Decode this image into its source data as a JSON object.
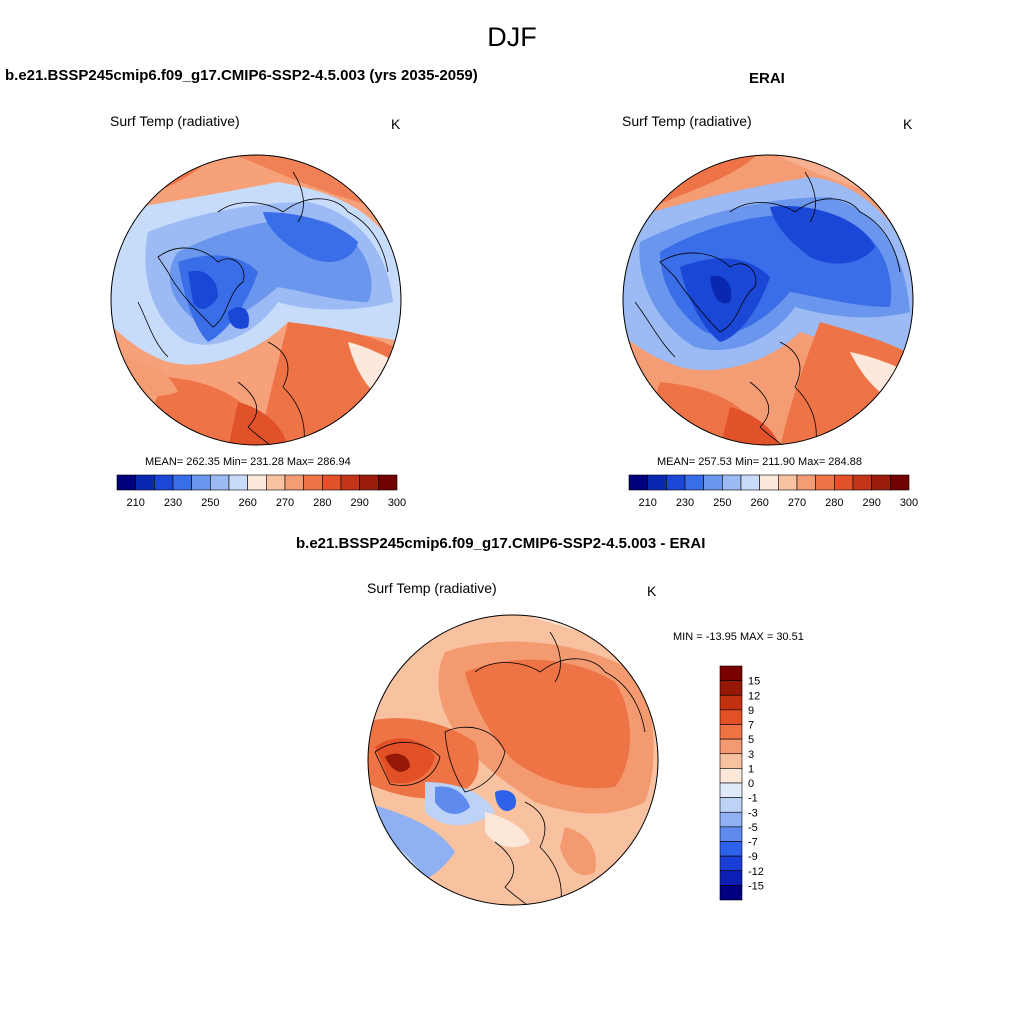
{
  "page_title": "DJF",
  "colors": {
    "seq_scale": [
      "#00007f",
      "#0a27b0",
      "#1a47d6",
      "#3a6ee8",
      "#6a96ee",
      "#9cbaf3",
      "#c7dcfa",
      "#fde8dc",
      "#f9c2a3",
      "#f49c74",
      "#ee7447",
      "#e2522a",
      "#c43418",
      "#9a1d0b",
      "#730000"
    ],
    "div_scale": [
      "#000080",
      "#0b1fb5",
      "#1b3ed6",
      "#2f62eb",
      "#5f8bef",
      "#8fb0f2",
      "#bcd2f7",
      "#dfeafb",
      "#fde7d9",
      "#f8c1a0",
      "#f39a70",
      "#ee7446",
      "#e25125",
      "#c1300f",
      "#951906",
      "#7a0000"
    ]
  },
  "panels": [
    {
      "id": "model",
      "title": "b.e21.BSSP245cmip6.f09_g17.CMIP6-SSP2-4.5.003 (yrs 2035-2059)",
      "variable": "Surf Temp (radiative)",
      "units": "K",
      "stats_text": "MEAN= 262.35  Min= 231.28  Max= 286.94",
      "stats": {
        "mean": 262.35,
        "min": 231.28,
        "max": 286.94
      },
      "colorbar_ticks": [
        "210",
        "230",
        "250",
        "260",
        "270",
        "280",
        "290",
        "300"
      ]
    },
    {
      "id": "obs",
      "title": "ERAI",
      "variable": "Surf Temp (radiative)",
      "units": "K",
      "stats_text": "MEAN= 257.53  Min= 211.90  Max= 284.88",
      "stats": {
        "mean": 257.53,
        "min": 211.9,
        "max": 284.88
      },
      "colorbar_ticks": [
        "210",
        "230",
        "250",
        "260",
        "270",
        "280",
        "290",
        "300"
      ]
    },
    {
      "id": "diff",
      "title": "b.e21.BSSP245cmip6.f09_g17.CMIP6-SSP2-4.5.003 - ERAI",
      "variable": "Surf Temp (radiative)",
      "units": "K",
      "stats_text": "MIN = -13.95 MAX =  30.51",
      "stats": {
        "min": -13.95,
        "max": 30.51
      },
      "colorbar_levels": [
        "15",
        "12",
        "9",
        "7",
        "5",
        "3",
        "1",
        "0",
        "-1",
        "-3",
        "-5",
        "-7",
        "-9",
        "-12",
        "-15"
      ]
    }
  ]
}
